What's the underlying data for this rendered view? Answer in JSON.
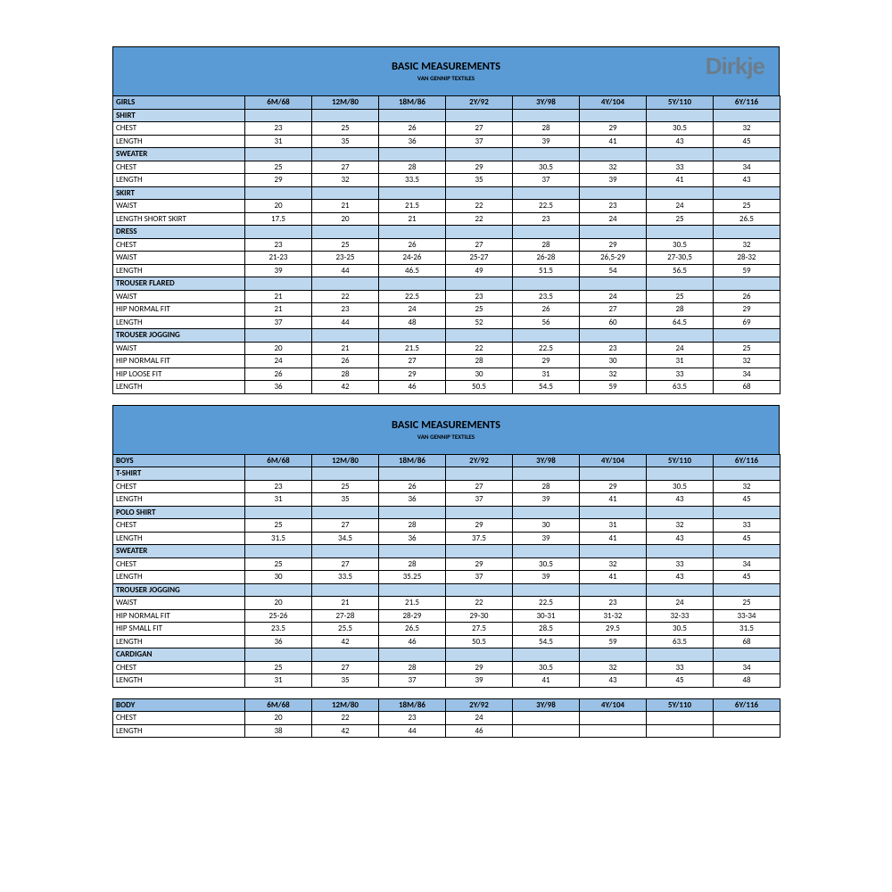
{
  "colors": {
    "header_bg": "#5a9bd5",
    "colhdr_bg": "#9bc2e6",
    "section_bg": "#bdd7ee",
    "logo": "#6f7a85"
  },
  "logo_text": "Dirkje",
  "sizes": [
    "6M/68",
    "12M/80",
    "18M/86",
    "2Y/92",
    "3Y/98",
    "4Y/104",
    "5Y/110",
    "6Y/116"
  ],
  "tables": [
    {
      "title": "BASIC MEASUREMENTS",
      "subtitle": "VAN GENNIP TEXTILES",
      "show_logo": true,
      "category": "GIRLS",
      "groups": [
        {
          "name": "SHIRT",
          "rows": [
            {
              "label": "CHEST",
              "v": [
                "23",
                "25",
                "26",
                "27",
                "28",
                "29",
                "30.5",
                "32"
              ]
            },
            {
              "label": "LENGTH",
              "v": [
                "31",
                "35",
                "36",
                "37",
                "39",
                "41",
                "43",
                "45"
              ]
            }
          ]
        },
        {
          "name": "SWEATER",
          "rows": [
            {
              "label": "CHEST",
              "v": [
                "25",
                "27",
                "28",
                "29",
                "30.5",
                "32",
                "33",
                "34"
              ]
            },
            {
              "label": "LENGTH",
              "v": [
                "29",
                "32",
                "33.5",
                "35",
                "37",
                "39",
                "41",
                "43"
              ]
            }
          ]
        },
        {
          "name": "SKIRT",
          "rows": [
            {
              "label": "WAIST",
              "v": [
                "20",
                "21",
                "21.5",
                "22",
                "22.5",
                "23",
                "24",
                "25"
              ]
            },
            {
              "label": "LENGTH SHORT SKIRT",
              "v": [
                "17.5",
                "20",
                "21",
                "22",
                "23",
                "24",
                "25",
                "26.5"
              ]
            }
          ]
        },
        {
          "name": "DRESS",
          "rows": [
            {
              "label": "CHEST",
              "v": [
                "23",
                "25",
                "26",
                "27",
                "28",
                "29",
                "30.5",
                "32"
              ]
            },
            {
              "label": "WAIST",
              "v": [
                "21-23",
                "23-25",
                "24-26",
                "25-27",
                "26-28",
                "26,5-29",
                "27-30,5",
                "28-32"
              ]
            },
            {
              "label": "LENGTH",
              "v": [
                "39",
                "44",
                "46.5",
                "49",
                "51.5",
                "54",
                "56.5",
                "59"
              ]
            }
          ]
        },
        {
          "name": "TROUSER FLARED",
          "rows": [
            {
              "label": "WAIST",
              "v": [
                "21",
                "22",
                "22.5",
                "23",
                "23.5",
                "24",
                "25",
                "26"
              ]
            },
            {
              "label": "HIP NORMAL FIT",
              "v": [
                "21",
                "23",
                "24",
                "25",
                "26",
                "27",
                "28",
                "29"
              ]
            },
            {
              "label": "LENGTH",
              "v": [
                "37",
                "44",
                "48",
                "52",
                "56",
                "60",
                "64.5",
                "69"
              ]
            }
          ]
        },
        {
          "name": "TROUSER JOGGING",
          "rows": [
            {
              "label": "WAIST",
              "v": [
                "20",
                "21",
                "21.5",
                "22",
                "22.5",
                "23",
                "24",
                "25"
              ]
            },
            {
              "label": "HIP NORMAL FIT",
              "v": [
                "24",
                "26",
                "27",
                "28",
                "29",
                "30",
                "31",
                "32"
              ]
            },
            {
              "label": "HIP LOOSE FIT",
              "v": [
                "26",
                "28",
                "29",
                "30",
                "31",
                "32",
                "33",
                "34"
              ]
            },
            {
              "label": "LENGTH",
              "v": [
                "36",
                "42",
                "46",
                "50.5",
                "54.5",
                "59",
                "63.5",
                "68"
              ]
            }
          ]
        }
      ]
    },
    {
      "title": "BASIC MEASUREMENTS",
      "subtitle": "VAN GENNIP TEXTILES",
      "show_logo": false,
      "category": "BOYS",
      "groups": [
        {
          "name": "T-SHIRT",
          "rows": [
            {
              "label": "CHEST",
              "v": [
                "23",
                "25",
                "26",
                "27",
                "28",
                "29",
                "30.5",
                "32"
              ]
            },
            {
              "label": "LENGTH",
              "v": [
                "31",
                "35",
                "36",
                "37",
                "39",
                "41",
                "43",
                "45"
              ]
            }
          ]
        },
        {
          "name": "POLO SHIRT",
          "rows": [
            {
              "label": "CHEST",
              "v": [
                "25",
                "27",
                "28",
                "29",
                "30",
                "31",
                "32",
                "33"
              ]
            },
            {
              "label": "LENGTH",
              "v": [
                "31.5",
                "34.5",
                "36",
                "37.5",
                "39",
                "41",
                "43",
                "45"
              ]
            }
          ]
        },
        {
          "name": "SWEATER",
          "rows": [
            {
              "label": "CHEST",
              "v": [
                "25",
                "27",
                "28",
                "29",
                "30.5",
                "32",
                "33",
                "34"
              ]
            },
            {
              "label": "LENGTH",
              "v": [
                "30",
                "33.5",
                "35.25",
                "37",
                "39",
                "41",
                "43",
                "45"
              ]
            }
          ]
        },
        {
          "name": "TROUSER JOGGING",
          "rows": [
            {
              "label": "WAIST",
              "v": [
                "20",
                "21",
                "21.5",
                "22",
                "22.5",
                "23",
                "24",
                "25"
              ]
            },
            {
              "label": "HIP NORMAL FIT",
              "v": [
                "25-26",
                "27-28",
                "28-29",
                "29-30",
                "30-31",
                "31-32",
                "32-33",
                "33-34"
              ]
            },
            {
              "label": "HIP SMALL FIT",
              "v": [
                "23.5",
                "25.5",
                "26.5",
                "27.5",
                "28.5",
                "29.5",
                "30.5",
                "31.5"
              ]
            },
            {
              "label": "LENGTH",
              "v": [
                "36",
                "42",
                "46",
                "50.5",
                "54.5",
                "59",
                "63.5",
                "68"
              ]
            }
          ]
        },
        {
          "name": "CARDIGAN",
          "rows": [
            {
              "label": "CHEST",
              "v": [
                "25",
                "27",
                "28",
                "29",
                "30.5",
                "32",
                "33",
                "34"
              ]
            },
            {
              "label": "LENGTH",
              "v": [
                "31",
                "35",
                "37",
                "39",
                "41",
                "43",
                "45",
                "48"
              ]
            }
          ]
        }
      ]
    },
    {
      "title": null,
      "category": "BODY",
      "groups": [
        {
          "name": null,
          "rows": [
            {
              "label": "CHEST",
              "v": [
                "20",
                "22",
                "23",
                "24",
                "",
                "",
                "",
                ""
              ]
            },
            {
              "label": "LENGTH",
              "v": [
                "38",
                "42",
                "44",
                "46",
                "",
                "",
                "",
                ""
              ]
            }
          ]
        }
      ]
    }
  ]
}
